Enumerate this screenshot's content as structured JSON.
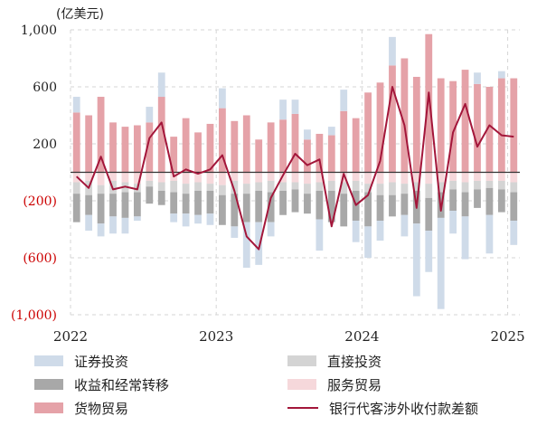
{
  "chart_data": {
    "type": "bar",
    "subtype": "stacked-bar-with-line",
    "title": "",
    "unit_label": "(亿美元)",
    "xlabel": "",
    "ylabel": "",
    "ylim": [
      -1000,
      1000
    ],
    "yticks": [
      1000,
      600,
      200,
      -200,
      -600,
      -1000
    ],
    "ytick_labels": [
      "1,000",
      "600",
      "200",
      "(200)",
      "(600)",
      "(1,000)"
    ],
    "x_tick_labels": [
      "2022",
      "2023",
      "2024",
      "2025"
    ],
    "x_tick_index": [
      0,
      12,
      24,
      36
    ],
    "grid": true,
    "legend_position": "bottom",
    "categories": [
      "2022-01",
      "2022-02",
      "2022-03",
      "2022-04",
      "2022-05",
      "2022-06",
      "2022-07",
      "2022-08",
      "2022-09",
      "2022-10",
      "2022-11",
      "2022-12",
      "2023-01",
      "2023-02",
      "2023-03",
      "2023-04",
      "2023-05",
      "2023-06",
      "2023-07",
      "2023-08",
      "2023-09",
      "2023-10",
      "2023-11",
      "2023-12",
      "2024-01",
      "2024-02",
      "2024-03",
      "2024-04",
      "2024-05",
      "2024-06",
      "2024-07",
      "2024-08",
      "2024-09",
      "2024-10",
      "2024-11",
      "2024-12",
      "2025-01"
    ],
    "series": [
      {
        "name": "货物贸易",
        "kind": "bar",
        "color": "#e5a2a8",
        "values": [
          420,
          400,
          530,
          350,
          320,
          330,
          350,
          530,
          250,
          380,
          280,
          340,
          450,
          360,
          400,
          230,
          350,
          370,
          410,
          230,
          270,
          260,
          430,
          380,
          560,
          630,
          750,
          800,
          670,
          970,
          660,
          640,
          720,
          620,
          600,
          660,
          660
        ]
      },
      {
        "name": "服务贸易",
        "kind": "bar",
        "color": "#f6d8db",
        "values": [
          -70,
          -60,
          -90,
          -60,
          -70,
          -80,
          -60,
          -70,
          -60,
          -80,
          -70,
          -80,
          -90,
          -60,
          -80,
          -70,
          -60,
          -70,
          -70,
          -80,
          -70,
          -60,
          -70,
          -60,
          -80,
          -80,
          -70,
          -80,
          -70,
          -80,
          -70,
          -60,
          -70,
          -60,
          -60,
          -60,
          -70
        ]
      },
      {
        "name": "直接投资",
        "kind": "bar",
        "color": "#d4d4d4",
        "values": [
          -80,
          -100,
          -60,
          -90,
          -70,
          -60,
          -40,
          -60,
          -80,
          -70,
          -60,
          -50,
          -70,
          -90,
          -70,
          -60,
          -80,
          -60,
          -50,
          -70,
          -60,
          -70,
          -80,
          -70,
          -60,
          -80,
          -90,
          -70,
          -60,
          -100,
          -70,
          -60,
          -70,
          -60,
          -50,
          -60,
          -70
        ]
      },
      {
        "name": "收益和经常转移",
        "kind": "bar",
        "color": "#a8a8a8",
        "values": [
          -200,
          -140,
          -210,
          -160,
          -180,
          -170,
          -120,
          -100,
          -150,
          -140,
          -170,
          -160,
          -210,
          -230,
          -200,
          -220,
          -210,
          -170,
          -160,
          -140,
          -200,
          -220,
          -230,
          -210,
          -240,
          -180,
          -150,
          -150,
          -230,
          -230,
          -180,
          -150,
          -170,
          -130,
          -190,
          -160,
          -200
        ]
      },
      {
        "name": "证券投资",
        "kind": "bar",
        "color": "#cfdbe9",
        "values": [
          110,
          -110,
          -90,
          -120,
          -110,
          -30,
          110,
          170,
          -60,
          -90,
          -60,
          -80,
          140,
          -80,
          -320,
          -300,
          -100,
          140,
          100,
          70,
          -220,
          60,
          150,
          -150,
          -220,
          -140,
          200,
          -150,
          -510,
          -290,
          -640,
          -160,
          -300,
          80,
          -270,
          50,
          -170
        ]
      },
      {
        "name": "银行代客涉外收付款差额",
        "kind": "line",
        "color": "#a3163a",
        "values": [
          -30,
          -110,
          110,
          -120,
          -100,
          -120,
          240,
          350,
          -30,
          20,
          -10,
          20,
          120,
          -130,
          -450,
          -540,
          -180,
          -20,
          130,
          50,
          90,
          -380,
          -10,
          -230,
          -160,
          80,
          600,
          330,
          -250,
          560,
          -270,
          280,
          480,
          180,
          330,
          260,
          250
        ]
      }
    ]
  },
  "legend": [
    {
      "label": "证券投资",
      "color": "#cfdbe9",
      "kind": "bar"
    },
    {
      "label": "直接投资",
      "color": "#d4d4d4",
      "kind": "bar"
    },
    {
      "label": "收益和经常转移",
      "color": "#a8a8a8",
      "kind": "bar"
    },
    {
      "label": "服务贸易",
      "color": "#f6d8db",
      "kind": "bar"
    },
    {
      "label": "货物贸易",
      "color": "#e5a2a8",
      "kind": "bar"
    },
    {
      "label": "银行代客涉外收付款差额",
      "color": "#a3163a",
      "kind": "line"
    }
  ]
}
